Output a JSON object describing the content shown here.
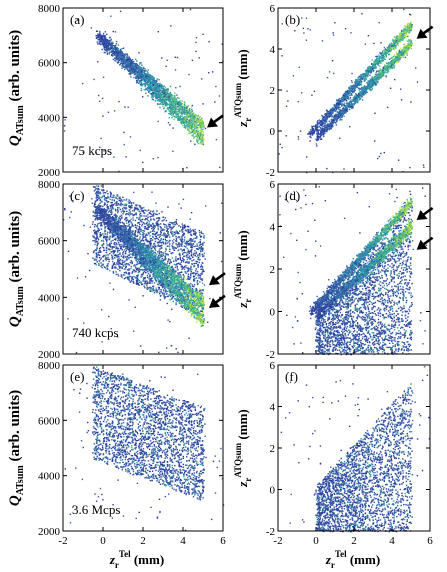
{
  "figure": {
    "left_ylabel": {
      "main": "Q",
      "sub": "ATsum",
      "rest": " (arb. units)"
    },
    "right_ylabel": {
      "main": "z",
      "sub": "r",
      "sup": "ATQsum",
      "rest": " (mm)"
    },
    "xlabel": {
      "main": "z",
      "sub": "r",
      "sup": "Tel",
      "rest": " (mm)"
    }
  },
  "chart_data": [
    {
      "type": "scatter",
      "panel_label": "(a)",
      "annotation": "75 kcps",
      "xlim": [
        -2,
        6
      ],
      "ylim": [
        2000,
        8000
      ],
      "xticks": [
        "-2",
        "0",
        "2",
        "4",
        "6"
      ],
      "yticks": [
        "2000",
        "4000",
        "6000",
        "8000"
      ],
      "show_xticklabels": false,
      "show_yticklabels": true,
      "bands": [
        {
          "x": [
            -0.4,
            5.0
          ],
          "y": [
            7050,
            3200
          ],
          "spread": 130
        },
        {
          "x": [
            -0.2,
            5.0
          ],
          "y": [
            7000,
            3700
          ],
          "spread": 110
        }
      ],
      "arrows": [
        {
          "x": 5.3,
          "y": 3700
        }
      ]
    },
    {
      "type": "scatter",
      "panel_label": "(b)",
      "annotation": "",
      "xlim": [
        -2,
        6
      ],
      "ylim": [
        -2,
        6
      ],
      "xticks": [
        "-2",
        "0",
        "2",
        "4",
        "6"
      ],
      "yticks": [
        "-2",
        "0",
        "2",
        "4",
        "6"
      ],
      "show_xticklabels": false,
      "show_yticklabels": true,
      "bands": [
        {
          "x": [
            -0.4,
            5.0
          ],
          "y": [
            -0.2,
            5.2
          ],
          "spread": 0.12
        },
        {
          "x": [
            0.0,
            5.0
          ],
          "y": [
            -0.3,
            4.3
          ],
          "spread": 0.12
        }
      ],
      "arrows": [
        {
          "x": 5.4,
          "y": 4.6
        }
      ]
    },
    {
      "type": "scatter",
      "panel_label": "(c)",
      "annotation": "740 kcps",
      "xlim": [
        -2,
        6
      ],
      "ylim": [
        2000,
        8000
      ],
      "xticks": [
        "-2",
        "0",
        "2",
        "4",
        "6"
      ],
      "yticks": [
        "2000",
        "4000",
        "6000",
        "8000"
      ],
      "show_xticklabels": false,
      "show_yticklabels": true,
      "bands": [
        {
          "x": [
            -0.4,
            5.0
          ],
          "y": [
            7100,
            3200
          ],
          "spread": 130
        },
        {
          "x": [
            -0.2,
            5.0
          ],
          "y": [
            7100,
            3800
          ],
          "spread": 120
        }
      ],
      "diffuse": {
        "x": [
          -0.5,
          5.0
        ],
        "ylow": [
          5200,
          3300
        ],
        "yhigh": [
          8000,
          6300
        ]
      },
      "arrows": [
        {
          "x": 5.4,
          "y": 4500
        },
        {
          "x": 5.4,
          "y": 3700
        }
      ]
    },
    {
      "type": "scatter",
      "panel_label": "(d)",
      "annotation": "",
      "xlim": [
        -2,
        6
      ],
      "ylim": [
        -2,
        6
      ],
      "xticks": [
        "-2",
        "0",
        "2",
        "4",
        "6"
      ],
      "yticks": [
        "-2",
        "0",
        "2",
        "4",
        "6"
      ],
      "show_xticklabels": false,
      "show_yticklabels": true,
      "bands": [
        {
          "x": [
            -0.3,
            5.0
          ],
          "y": [
            0.0,
            5.2
          ],
          "spread": 0.12
        },
        {
          "x": [
            0.0,
            5.0
          ],
          "y": [
            -0.2,
            4.0
          ],
          "spread": 0.15
        }
      ],
      "diffuse": {
        "x": [
          0.0,
          5.0
        ],
        "ylow": [
          -2.0,
          -2.0
        ],
        "yhigh": [
          0.3,
          5.2
        ]
      },
      "arrows": [
        {
          "x": 5.4,
          "y": 4.4
        },
        {
          "x": 5.4,
          "y": 3.0
        }
      ]
    },
    {
      "type": "scatter",
      "panel_label": "(e)",
      "annotation": "3.6 Mcps",
      "xlim": [
        -2,
        6
      ],
      "ylim": [
        2000,
        8000
      ],
      "xticks": [
        "-2",
        "0",
        "2",
        "4",
        "6"
      ],
      "yticks": [
        "2000",
        "4000",
        "6000",
        "8000"
      ],
      "show_xticklabels": true,
      "show_yticklabels": true,
      "bands": [],
      "diffuse": {
        "x": [
          -0.5,
          5.0
        ],
        "ylow": [
          4600,
          3100
        ],
        "yhigh": [
          8000,
          6500
        ]
      },
      "arrows": []
    },
    {
      "type": "scatter",
      "panel_label": "(f)",
      "annotation": "",
      "xlim": [
        -2,
        6
      ],
      "ylim": [
        -2,
        6
      ],
      "xticks": [
        "-2",
        "0",
        "2",
        "4",
        "6"
      ],
      "yticks": [
        "-2",
        "0",
        "2",
        "4",
        "6"
      ],
      "show_xticklabels": true,
      "show_yticklabels": true,
      "bands": [],
      "diffuse": {
        "x": [
          0.0,
          5.0
        ],
        "ylow": [
          -2.0,
          -2.0
        ],
        "yhigh": [
          0.2,
          5.2
        ]
      },
      "arrows": []
    }
  ],
  "colors": {
    "points": [
      "#2a3e9c",
      "#3b5aa8",
      "#2f7fae",
      "#2fa3a0",
      "#59c17c",
      "#b8df3a"
    ]
  }
}
